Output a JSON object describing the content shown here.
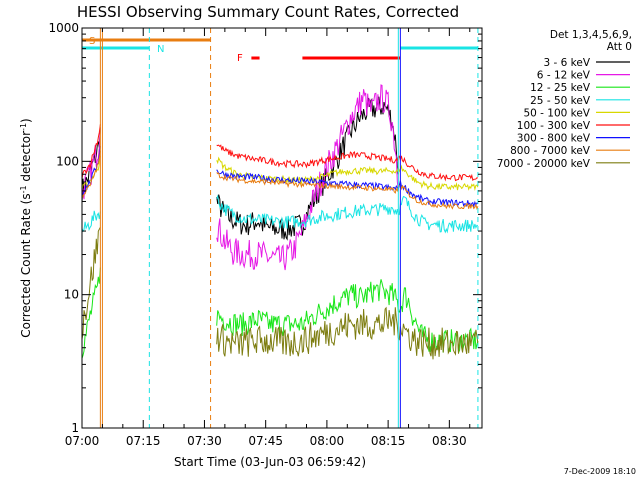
{
  "chart_data": {
    "type": "line",
    "title": "HESSI Observing Summary Count Rates, Corrected",
    "xlabel": "Start Time (03-Jun-03 06:59:42)",
    "ylabel_main": "Corrected Count Rate (s",
    "ylabel_sup1": "-1",
    "ylabel_mid": " detector",
    "ylabel_sup2": "-1",
    "ylabel_end": ")",
    "y_scale": "log",
    "ylim": [
      1,
      1000
    ],
    "xlim_minutes_after_0700": [
      0,
      98
    ],
    "x_tick_labels": [
      "07:00",
      "07:15",
      "07:30",
      "07:45",
      "08:00",
      "08:15",
      "08:30"
    ],
    "x_tick_minutes": [
      0,
      15,
      30,
      45,
      60,
      75,
      90
    ],
    "y_tick_labels": [
      "1",
      "10",
      "100",
      "1000"
    ],
    "y_tick_values": [
      1,
      10,
      100,
      1000
    ],
    "legend_header": [
      "Det 1,3,4,5,6,9,",
      "Att 0"
    ],
    "legend_position": "right",
    "footer_date": "7-Dec-2009 18:10",
    "flag_labels": {
      "S": "S",
      "N": "N",
      "F": "F"
    },
    "flags": {
      "S": {
        "color": "#e87d10",
        "start": 0,
        "end": 31.5
      },
      "N": [
        {
          "color": "#19e4e4",
          "start": 0,
          "end": 16.5
        },
        {
          "color": "#19e4e4",
          "start": 78,
          "end": 97
        }
      ],
      "F": [
        {
          "color": "#ff0000",
          "start": 41.5,
          "end": 43.5
        },
        {
          "color": "#ff0000",
          "start": 54,
          "end": 78
        }
      ]
    },
    "vlines": [
      {
        "x": 4.5,
        "color": "#e87d10",
        "style": "solid"
      },
      {
        "x": 5,
        "color": "#e87d10",
        "style": "solid"
      },
      {
        "x": 16.5,
        "color": "#19e4e4",
        "style": "dashed"
      },
      {
        "x": 31.5,
        "color": "#e87d10",
        "style": "dashed"
      },
      {
        "x": 77.5,
        "color": "#19e4e4",
        "style": "solid"
      },
      {
        "x": 78,
        "color": "#1010ff",
        "style": "solid"
      },
      {
        "x": 97,
        "color": "#19e4e4",
        "style": "dashed"
      }
    ],
    "series": [
      {
        "name": "3 - 6 keV",
        "color": "#000000",
        "noise": 0.09,
        "segments": [
          [
            [
              0,
              60
            ],
            [
              2,
              80
            ],
            [
              4,
              130
            ],
            [
              4.5,
              180
            ]
          ],
          [
            [
              33,
              50
            ],
            [
              35,
              40
            ],
            [
              38,
              35
            ],
            [
              40,
              33
            ],
            [
              43,
              36
            ],
            [
              45,
              32
            ],
            [
              48,
              31
            ],
            [
              50,
              31
            ],
            [
              52,
              32
            ],
            [
              54,
              34
            ],
            [
              56,
              46
            ],
            [
              58,
              60
            ],
            [
              60,
              75
            ],
            [
              62,
              95
            ],
            [
              64,
              130
            ],
            [
              66,
              170
            ],
            [
              68,
              210
            ],
            [
              70,
              240
            ],
            [
              72,
              250
            ],
            [
              74,
              260
            ],
            [
              75,
              240
            ],
            [
              76,
              200
            ],
            [
              77,
              130
            ],
            [
              77.5,
              80
            ]
          ]
        ]
      },
      {
        "name": "6 - 12 keV",
        "color": "#e619e6",
        "noise": 0.11,
        "segments": [
          [
            [
              0,
              60
            ],
            [
              2,
              80
            ],
            [
              4,
              130
            ],
            [
              4.5,
              180
            ]
          ],
          [
            [
              33,
              33
            ],
            [
              35,
              25
            ],
            [
              37,
              21
            ],
            [
              40,
              20
            ],
            [
              43,
              20
            ],
            [
              46,
              19
            ],
            [
              49,
              18
            ],
            [
              52,
              22
            ],
            [
              54,
              30
            ],
            [
              56,
              45
            ],
            [
              58,
              65
            ],
            [
              60,
              90
            ],
            [
              62,
              120
            ],
            [
              64,
              160
            ],
            [
              66,
              220
            ],
            [
              68,
              270
            ],
            [
              69,
              300
            ],
            [
              70,
              260
            ],
            [
              71,
              240
            ],
            [
              72,
              270
            ],
            [
              73,
              300
            ],
            [
              74,
              290
            ],
            [
              75,
              260
            ],
            [
              76,
              200
            ],
            [
              77,
              110
            ],
            [
              77.5,
              60
            ]
          ]
        ]
      },
      {
        "name": "12 - 25 keV",
        "color": "#19e619",
        "noise": 0.09,
        "segments": [
          [
            [
              0,
              4
            ],
            [
              1,
              5
            ],
            [
              2,
              7
            ],
            [
              3,
              9
            ],
            [
              4,
              12
            ],
            [
              4.5,
              16
            ]
          ],
          [
            [
              33,
              7
            ],
            [
              35,
              6.5
            ],
            [
              38,
              6
            ],
            [
              40,
              6
            ],
            [
              43,
              6.5
            ],
            [
              46,
              6
            ],
            [
              50,
              6
            ],
            [
              54,
              6
            ],
            [
              57,
              7
            ],
            [
              60,
              8
            ],
            [
              63,
              9
            ],
            [
              66,
              10
            ],
            [
              68,
              9.5
            ],
            [
              70,
              10
            ],
            [
              72,
              11
            ],
            [
              74,
              10.5
            ],
            [
              76,
              10
            ],
            [
              77,
              9
            ],
            [
              78,
              8
            ],
            [
              79,
              10
            ],
            [
              80,
              9
            ],
            [
              81,
              7
            ],
            [
              82,
              6
            ],
            [
              83,
              5
            ],
            [
              85,
              4.5
            ],
            [
              88,
              4.5
            ],
            [
              92,
              4.5
            ],
            [
              97,
              4.5
            ]
          ]
        ]
      },
      {
        "name": "25 - 50 keV",
        "color": "#19e4e4",
        "noise": 0.05,
        "segments": [
          [
            [
              0,
              30
            ],
            [
              1.5,
              33
            ],
            [
              3,
              38
            ],
            [
              4.5,
              42
            ]
          ],
          [
            [
              33,
              52
            ],
            [
              35,
              44
            ],
            [
              37,
              40
            ],
            [
              40,
              37
            ],
            [
              45,
              36
            ],
            [
              50,
              35
            ],
            [
              55,
              36
            ],
            [
              58,
              38
            ],
            [
              62,
              40
            ],
            [
              66,
              42
            ],
            [
              70,
              43
            ],
            [
              74,
              44
            ],
            [
              76,
              45
            ],
            [
              77,
              43
            ],
            [
              78,
              45
            ],
            [
              79,
              52
            ],
            [
              80,
              46
            ],
            [
              81,
              42
            ],
            [
              82,
              38
            ],
            [
              84,
              34
            ],
            [
              88,
              33
            ],
            [
              92,
              33
            ],
            [
              97,
              33
            ]
          ]
        ]
      },
      {
        "name": "50 - 100 keV",
        "color": "#d8d800",
        "noise": 0.025,
        "segments": [
          [
            [
              0,
              62
            ],
            [
              2,
              72
            ],
            [
              4,
              90
            ],
            [
              4.5,
              110
            ]
          ],
          [
            [
              33,
              105
            ],
            [
              35,
              90
            ],
            [
              38,
              80
            ],
            [
              42,
              76
            ],
            [
              46,
              74
            ],
            [
              50,
              73
            ],
            [
              54,
              72
            ],
            [
              58,
              75
            ],
            [
              62,
              82
            ],
            [
              66,
              85
            ],
            [
              70,
              85
            ],
            [
              74,
              84
            ],
            [
              76,
              86
            ],
            [
              77,
              82
            ],
            [
              78,
              90
            ],
            [
              80,
              80
            ],
            [
              82,
              70
            ],
            [
              85,
              65
            ],
            [
              90,
              64
            ],
            [
              97,
              64
            ]
          ]
        ]
      },
      {
        "name": "100 - 300 keV",
        "color": "#ff1010",
        "noise": 0.025,
        "segments": [
          [
            [
              0,
              78
            ],
            [
              2,
              95
            ],
            [
              4,
              150
            ],
            [
              4.5,
              190
            ]
          ],
          [
            [
              33,
              135
            ],
            [
              35,
              120
            ],
            [
              38,
              110
            ],
            [
              42,
              104
            ],
            [
              46,
              100
            ],
            [
              50,
              96
            ],
            [
              54,
              95
            ],
            [
              56,
              96
            ],
            [
              58,
              100
            ],
            [
              62,
              106
            ],
            [
              66,
              112
            ],
            [
              70,
              110
            ],
            [
              74,
              105
            ],
            [
              77,
              102
            ],
            [
              78,
              108
            ],
            [
              80,
              95
            ],
            [
              82,
              85
            ],
            [
              85,
              78
            ],
            [
              90,
              76
            ],
            [
              97,
              75
            ]
          ]
        ]
      },
      {
        "name": "300 - 800 keV",
        "color": "#1010ff",
        "noise": 0.025,
        "segments": [
          [
            [
              0,
              58
            ],
            [
              2,
              70
            ],
            [
              4,
              100
            ],
            [
              4.5,
              130
            ]
          ],
          [
            [
              33,
              85
            ],
            [
              35,
              80
            ],
            [
              38,
              77
            ],
            [
              42,
              76
            ],
            [
              46,
              74
            ],
            [
              50,
              72
            ],
            [
              54,
              71
            ],
            [
              58,
              70
            ],
            [
              62,
              68
            ],
            [
              66,
              67
            ],
            [
              70,
              66
            ],
            [
              74,
              64
            ],
            [
              77,
              62
            ],
            [
              78,
              68
            ],
            [
              80,
              60
            ],
            [
              82,
              54
            ],
            [
              85,
              50
            ],
            [
              90,
              49
            ],
            [
              97,
              48
            ]
          ]
        ]
      },
      {
        "name": "800 - 7000 keV",
        "color": "#e87d10",
        "noise": 0.02,
        "segments": [
          [
            [
              0,
              55
            ],
            [
              2,
              66
            ],
            [
              4,
              95
            ],
            [
              4.5,
              120
            ]
          ],
          [
            [
              33,
              80
            ],
            [
              35,
              76
            ],
            [
              38,
              73
            ],
            [
              42,
              71
            ],
            [
              46,
              70
            ],
            [
              50,
              68
            ],
            [
              54,
              67
            ],
            [
              58,
              66
            ],
            [
              62,
              65
            ],
            [
              66,
              64
            ],
            [
              70,
              63
            ],
            [
              74,
              62
            ],
            [
              77,
              60
            ],
            [
              78,
              66
            ],
            [
              80,
              57
            ],
            [
              82,
              51
            ],
            [
              85,
              48
            ],
            [
              90,
              46
            ],
            [
              97,
              46
            ]
          ]
        ]
      },
      {
        "name": "7000 - 20000 keV",
        "color": "#7d7d10",
        "noise": 0.12,
        "segments": [
          [
            [
              0,
              6
            ],
            [
              1,
              8
            ],
            [
              2,
              12
            ],
            [
              3,
              18
            ],
            [
              4,
              26
            ],
            [
              4.5,
              32
            ]
          ],
          [
            [
              33,
              5
            ],
            [
              35,
              4.5
            ],
            [
              38,
              4.2
            ],
            [
              42,
              4.5
            ],
            [
              46,
              4.5
            ],
            [
              50,
              4.3
            ],
            [
              54,
              4.5
            ],
            [
              58,
              5
            ],
            [
              62,
              5.5
            ],
            [
              66,
              6
            ],
            [
              70,
              6
            ],
            [
              74,
              6
            ],
            [
              76,
              6.5
            ],
            [
              77,
              6
            ],
            [
              78,
              6
            ],
            [
              80,
              5
            ],
            [
              82,
              4.5
            ],
            [
              85,
              4.3
            ],
            [
              90,
              4.3
            ],
            [
              97,
              4.3
            ]
          ]
        ]
      }
    ]
  }
}
